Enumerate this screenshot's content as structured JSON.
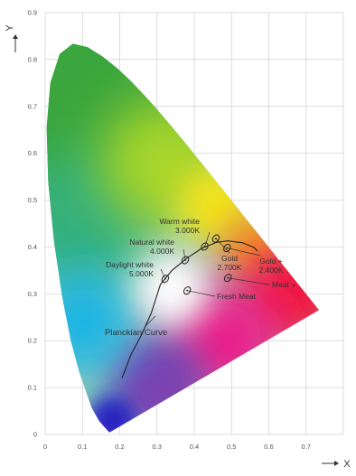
{
  "chart_data": {
    "type": "scatter",
    "title": "",
    "xlabel": "X",
    "ylabel": "Y",
    "xlim": [
      0,
      0.8
    ],
    "ylim": [
      0,
      0.9
    ],
    "xticks": [
      "0",
      "0.1",
      "0.2",
      "0.3",
      "0.4",
      "0.5",
      "0.6",
      "0.7"
    ],
    "yticks": [
      "0",
      "0.1",
      "0.2",
      "0.3",
      "0.4",
      "0.5",
      "0.6",
      "0.7",
      "0.8",
      "0.9"
    ],
    "grid": true,
    "gamut_colors": {
      "blue": "#2a20c0",
      "cyan": "#19b4e6",
      "green": "#3aa63d",
      "yellow_green": "#a8d62a",
      "yellow": "#f2e31b",
      "orange": "#f6941e",
      "red": "#ef1c3a",
      "magenta": "#ea1a8a",
      "purple": "#7b3fb0",
      "white_point": "#ffffff"
    },
    "spectral_locus": [
      [
        0.1741,
        0.005
      ],
      [
        0.1733,
        0.0048
      ],
      [
        0.1726,
        0.0048
      ],
      [
        0.1714,
        0.0051
      ],
      [
        0.1689,
        0.0069
      ],
      [
        0.1644,
        0.0109
      ],
      [
        0.1566,
        0.0177
      ],
      [
        0.144,
        0.0297
      ],
      [
        0.1241,
        0.0578
      ],
      [
        0.0913,
        0.1327
      ],
      [
        0.0687,
        0.2007
      ],
      [
        0.0454,
        0.295
      ],
      [
        0.0235,
        0.4127
      ],
      [
        0.0082,
        0.5384
      ],
      [
        0.0039,
        0.6548
      ],
      [
        0.0139,
        0.7502
      ],
      [
        0.0389,
        0.812
      ],
      [
        0.0743,
        0.8338
      ],
      [
        0.1142,
        0.8262
      ],
      [
        0.1547,
        0.8059
      ],
      [
        0.1929,
        0.7816
      ],
      [
        0.2296,
        0.7543
      ],
      [
        0.2658,
        0.7243
      ],
      [
        0.3016,
        0.6923
      ],
      [
        0.3373,
        0.6589
      ],
      [
        0.3731,
        0.6245
      ],
      [
        0.4087,
        0.5896
      ],
      [
        0.4441,
        0.5547
      ],
      [
        0.4788,
        0.5202
      ],
      [
        0.5125,
        0.4866
      ],
      [
        0.5448,
        0.4544
      ],
      [
        0.5752,
        0.4242
      ],
      [
        0.6029,
        0.3965
      ],
      [
        0.627,
        0.3725
      ],
      [
        0.6482,
        0.3514
      ],
      [
        0.6658,
        0.334
      ],
      [
        0.6801,
        0.3197
      ],
      [
        0.6915,
        0.3083
      ],
      [
        0.7006,
        0.2993
      ],
      [
        0.7079,
        0.292
      ],
      [
        0.714,
        0.2859
      ],
      [
        0.719,
        0.2809
      ],
      [
        0.723,
        0.277
      ],
      [
        0.726,
        0.274
      ],
      [
        0.7283,
        0.2717
      ],
      [
        0.73,
        0.27
      ],
      [
        0.7347,
        0.2653
      ]
    ],
    "planckian_curve": [
      [
        0.206,
        0.12
      ],
      [
        0.23,
        0.17
      ],
      [
        0.26,
        0.215
      ],
      [
        0.285,
        0.26
      ],
      [
        0.309,
        0.32
      ],
      [
        0.34,
        0.35
      ],
      [
        0.38,
        0.376
      ],
      [
        0.42,
        0.397
      ],
      [
        0.46,
        0.41
      ],
      [
        0.49,
        0.413
      ],
      [
        0.53,
        0.409
      ],
      [
        0.56,
        0.399
      ],
      [
        0.57,
        0.391
      ]
    ],
    "points": [
      {
        "name": "Daylight white",
        "label": "Daylight white",
        "sublabel": "5.000K",
        "x": 0.322,
        "y": 0.332
      },
      {
        "name": "Natural white",
        "label": "Natural white",
        "sublabel": "4.000K",
        "x": 0.376,
        "y": 0.372
      },
      {
        "name": "Warm white",
        "label": "Warm white",
        "sublabel": "3.000K",
        "x": 0.428,
        "y": 0.401
      },
      {
        "name": "Gold",
        "label": "Gold",
        "sublabel": "2.700K",
        "x": 0.458,
        "y": 0.418
      },
      {
        "name": "Gold +",
        "label": "Gold +",
        "sublabel": "2.400K",
        "x": 0.488,
        "y": 0.398
      },
      {
        "name": "Meat +",
        "label": "Meat +",
        "sublabel": "",
        "x": 0.49,
        "y": 0.334
      },
      {
        "name": "Fresh Meat",
        "label": "Fresh Meat",
        "sublabel": "",
        "x": 0.381,
        "y": 0.307
      }
    ],
    "curve_label": "Planckian Curve"
  }
}
